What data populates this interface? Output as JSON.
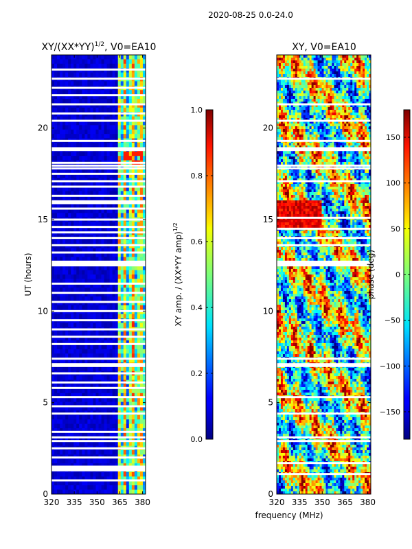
{
  "figure": {
    "suptitle": "2020-08-25 0.0-24.0",
    "xlabel": "frequency (MHz)"
  },
  "chart_data": [
    {
      "type": "heatmap",
      "title_main": "XY/(XX*YY)",
      "title_exp": "1/2",
      "title_rest": ", V0=EA10",
      "xlabel": "",
      "ylabel": "UT (hours)",
      "xlim": [
        320,
        382
      ],
      "ylim": [
        0,
        24
      ],
      "xticks": [
        320,
        335,
        350,
        365,
        380
      ],
      "yticks": [
        0,
        5,
        10,
        15,
        20
      ],
      "colorbar": {
        "label_main": "XY amp. / (XX*YY amp)",
        "label_exp": "1/2",
        "range": [
          0.0,
          1.0
        ],
        "ticks": [
          "0.0",
          "0.2",
          "0.4",
          "0.6",
          "0.8",
          "1.0"
        ],
        "tick_values": [
          0.0,
          0.2,
          0.4,
          0.6,
          0.8,
          1.0
        ],
        "colormap": "jet"
      },
      "flagged_hours": [
        0.75,
        1.3,
        1.4,
        1.5,
        2.0,
        2.5,
        2.9,
        3.1,
        3.4,
        4.4,
        4.8,
        5.3,
        5.8,
        6.1,
        6.6,
        7.0,
        7.1,
        7.4,
        8.2,
        8.6,
        9.0,
        9.5,
        10.0,
        10.5,
        11.0,
        11.5,
        12.5,
        12.6,
        12.7,
        13.2,
        13.6,
        14.0,
        14.3,
        14.6,
        15.0,
        15.6,
        15.9,
        16.0,
        16.3,
        16.8,
        17.1,
        17.5,
        17.8,
        17.95,
        18.1,
        18.8,
        18.9,
        19.3,
        20.4,
        20.8,
        21.3,
        21.8,
        22.2,
        22.7,
        23.2
      ],
      "notes": "amplitude mostly ~0.05 below 363 MHz; ~0.3-0.8 above 363 MHz"
    },
    {
      "type": "heatmap",
      "title_main": "XY, V0=EA10",
      "xlabel": "",
      "ylabel": "",
      "xlim": [
        320,
        382
      ],
      "ylim": [
        0,
        24
      ],
      "xticks": [
        320,
        335,
        350,
        365,
        380
      ],
      "yticks": [
        0,
        5,
        10,
        15,
        20
      ],
      "colorbar": {
        "label": "phase (deg)",
        "range": [
          -180,
          180
        ],
        "ticks": [
          "−150",
          "−100",
          "−50",
          "0",
          "50",
          "100",
          "150"
        ],
        "tick_values": [
          -150,
          -100,
          -50,
          0,
          50,
          100,
          150
        ],
        "colormap": "jet"
      },
      "flagged_hours": [
        1.1,
        1.7,
        2.9,
        3.1,
        4.4,
        5.3,
        7.0,
        7.1,
        7.4,
        12.5,
        12.6,
        12.7,
        13.6,
        14.0,
        14.5,
        15.1,
        17.1,
        17.8,
        17.95,
        18.8,
        18.9,
        19.3,
        20.4,
        21.3,
        22.7
      ]
    }
  ]
}
